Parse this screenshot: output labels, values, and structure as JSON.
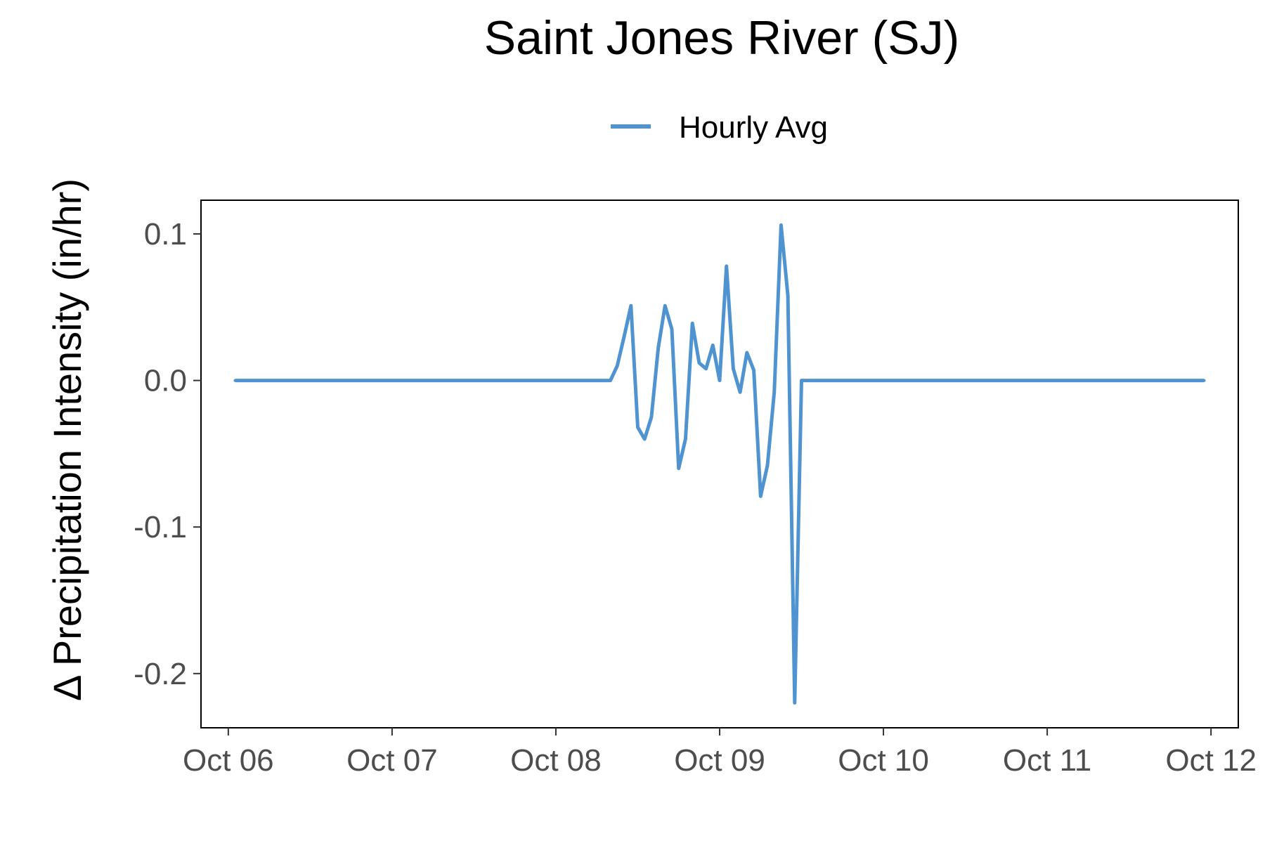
{
  "chart_data": {
    "type": "line",
    "title": "Saint Jones River (SJ)",
    "xlabel": "",
    "ylabel": "Δ Precipitation Intensity (in/hr)",
    "legend_position": "top",
    "grid": false,
    "line_color": "#4f94d0",
    "x_tick_labels": [
      "Oct 06",
      "Oct 07",
      "Oct 08",
      "Oct 09",
      "Oct 10",
      "Oct 11",
      "Oct 12"
    ],
    "y_tick_labels": [
      "0.1",
      "0.0",
      "-0.1",
      "-0.2"
    ],
    "y_ticks": [
      0.1,
      0.0,
      -0.1,
      -0.2
    ],
    "xlim": [
      "Oct 05 20:00",
      "Oct 12 04:00"
    ],
    "ylim": [
      -0.237,
      0.123
    ],
    "series": [
      {
        "name": "Hourly Avg",
        "x": [
          "Oct 06 01:00",
          "Oct 08 08:00",
          "Oct 08 09:00",
          "Oct 08 10:00",
          "Oct 08 11:00",
          "Oct 08 12:00",
          "Oct 08 13:00",
          "Oct 08 14:00",
          "Oct 08 15:00",
          "Oct 08 16:00",
          "Oct 08 17:00",
          "Oct 08 18:00",
          "Oct 08 19:00",
          "Oct 08 20:00",
          "Oct 08 21:00",
          "Oct 08 22:00",
          "Oct 08 23:00",
          "Oct 09 00:00",
          "Oct 09 01:00",
          "Oct 09 02:00",
          "Oct 09 03:00",
          "Oct 09 04:00",
          "Oct 09 05:00",
          "Oct 09 06:00",
          "Oct 09 07:00",
          "Oct 09 08:00",
          "Oct 09 09:00",
          "Oct 09 10:00",
          "Oct 09 11:00",
          "Oct 09 12:00",
          "Oct 09 12:30",
          "Oct 09 13:00",
          "Oct 11 23:00"
        ],
        "y": [
          0.0,
          0.0,
          0.01,
          0.03,
          0.051,
          -0.032,
          -0.04,
          -0.025,
          0.022,
          0.051,
          0.035,
          -0.06,
          -0.04,
          0.039,
          0.012,
          0.008,
          0.024,
          0.0,
          0.078,
          0.008,
          -0.008,
          0.019,
          0.007,
          -0.079,
          -0.058,
          -0.008,
          0.106,
          0.058,
          -0.22,
          0.0,
          0.0,
          0.0,
          0.0
        ]
      }
    ]
  }
}
